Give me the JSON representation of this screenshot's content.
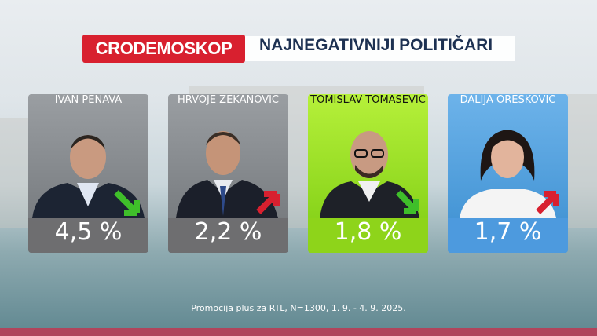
{
  "header": {
    "brand": "CRODEMOSKOP",
    "title": "NAJNEGATIVNIJI POLITIČARI"
  },
  "cards": [
    {
      "name": "IVAN PENAVA",
      "value": "4,5 %"
    },
    {
      "name": "HRVOJE ZEKANOVIĆ",
      "value": "2,2 %"
    },
    {
      "name": "TOMISLAV TOMAŠEVIĆ",
      "value": "1,8 %"
    },
    {
      "name": "DALIJA OREŠKOVIĆ",
      "value": "1,7 %"
    }
  ],
  "footer": "Promocija plus za RTL, N=1300, 1. 9. - 4. 9. 2025."
}
